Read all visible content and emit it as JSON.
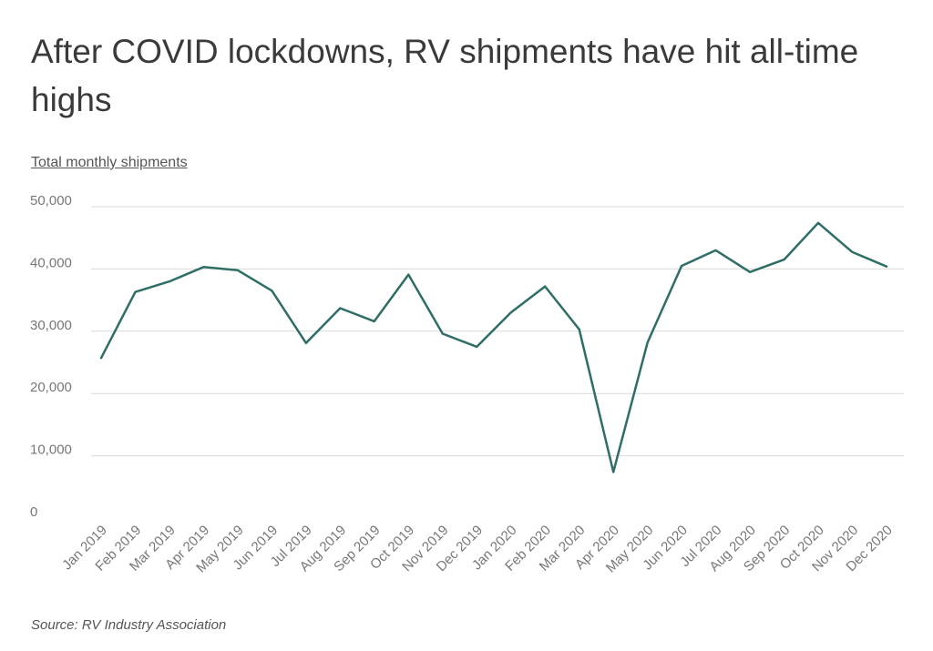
{
  "chart_data": {
    "type": "line",
    "title": "After COVID lockdowns, RV shipments have hit all-time highs",
    "ylabel": "Total monthly shipments",
    "xlabel": "",
    "source": "Source:  RV Industry Association",
    "categories": [
      "Jan 2019",
      "Feb 2019",
      "Mar 2019",
      "Apr 2019",
      "May 2019",
      "Jun 2019",
      "Jul 2019",
      "Aug 2019",
      "Sep 2019",
      "Oct 2019",
      "Nov 2019",
      "Dec 2019",
      "Jan 2020",
      "Feb 2020",
      "Mar 2020",
      "Apr 2020",
      "May 2020",
      "Jun 2020",
      "Jul 2020",
      "Aug 2020",
      "Sep 2020",
      "Oct 2020",
      "Nov 2020",
      "Dec 2020"
    ],
    "series": [
      {
        "values": [
          25700,
          36300,
          38000,
          40300,
          39800,
          36500,
          28100,
          33700,
          31600,
          39100,
          29600,
          27500,
          33000,
          37200,
          30300,
          7400,
          28200,
          40500,
          43000,
          39500,
          41500,
          47400,
          42700,
          40400
        ]
      }
    ],
    "ylim": [
      0,
      50000
    ],
    "yticks": [
      0,
      10000,
      20000,
      30000,
      40000,
      50000
    ],
    "ytick_labels": [
      "0",
      "10,000",
      "20,000",
      "30,000",
      "40,000",
      "50,000"
    ],
    "grid": true,
    "legend": "none",
    "colors": {
      "line": "#2e6e65",
      "grid": "#d9d9d9",
      "axis_text": "#777777"
    }
  }
}
